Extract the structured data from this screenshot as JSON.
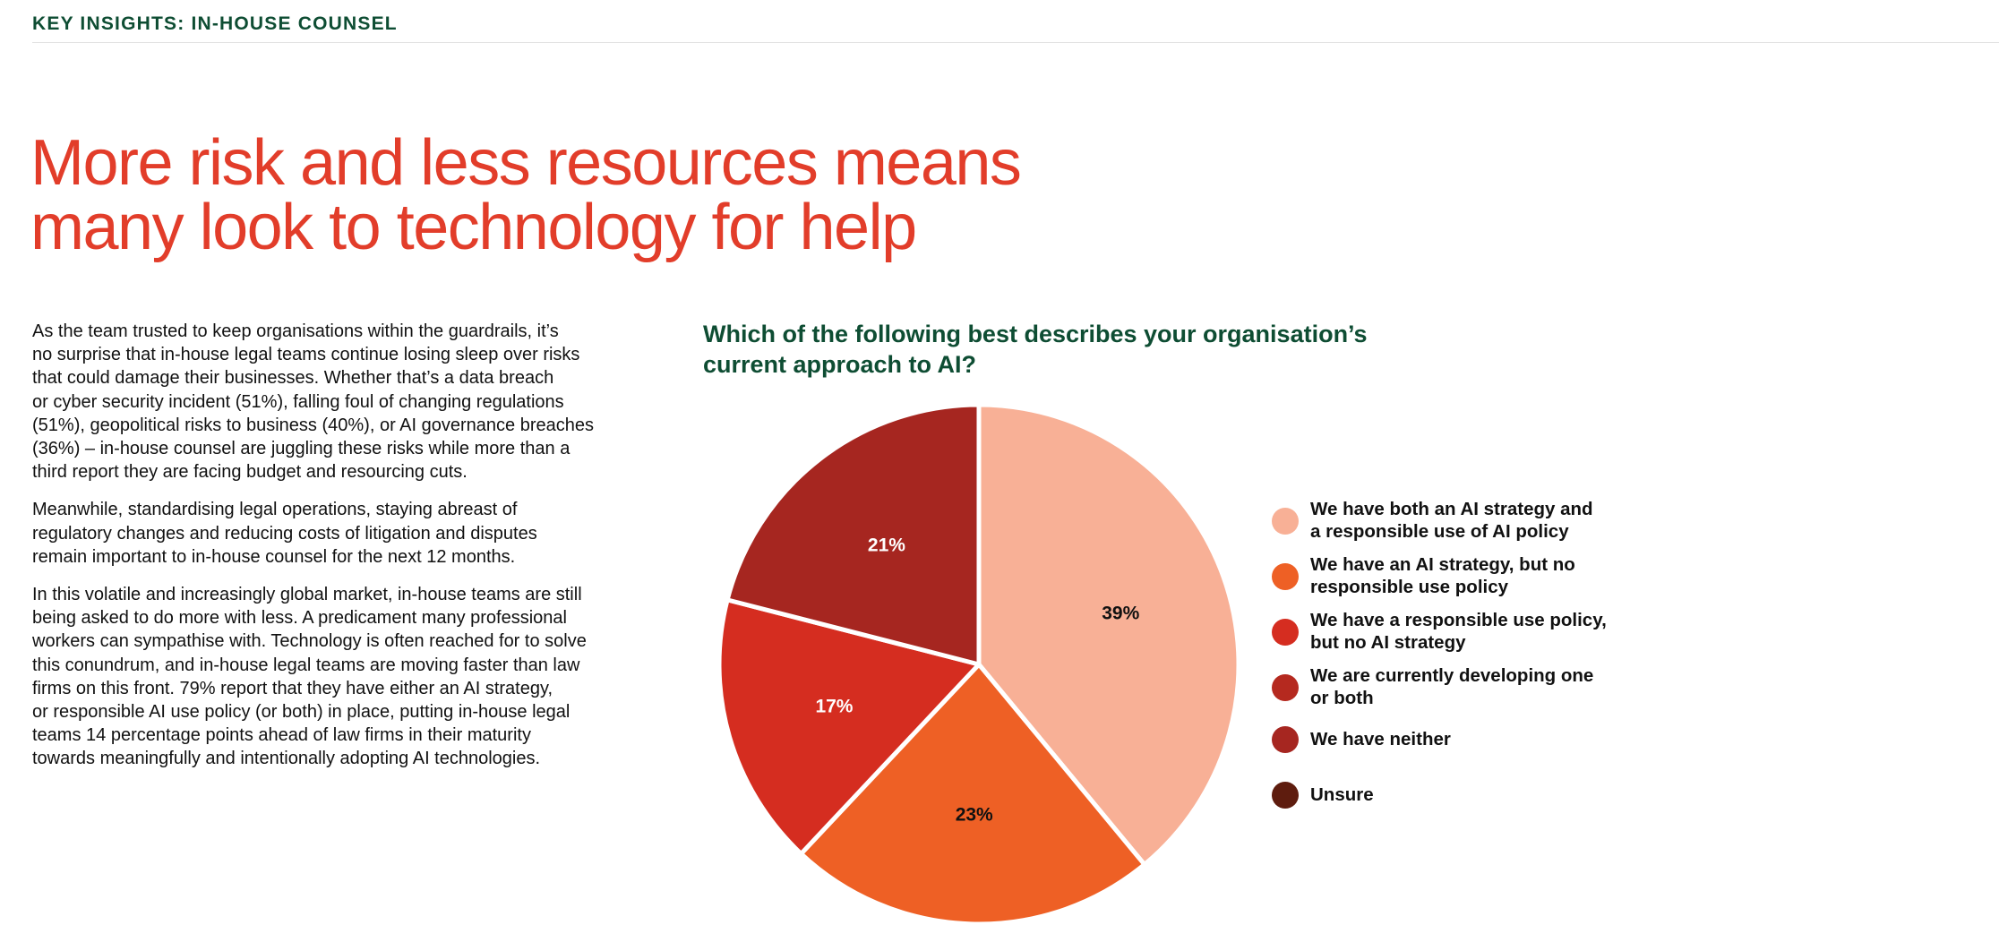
{
  "section_label": "KEY INSIGHTS: IN-HOUSE COUNSEL",
  "headline": [
    "More risk and less resources means",
    "many look to technology for help"
  ],
  "body": [
    [
      "As the team trusted to keep organisations within the guardrails, it’s",
      "no surprise that in-house legal teams continue losing sleep over risks",
      "that could damage their businesses. Whether that’s a data breach",
      "or cyber security incident (51%), falling foul of changing regulations",
      "(51%), geopolitical risks to business (40%), or AI governance breaches",
      "(36%) – in-house counsel are juggling these risks while more than a",
      "third report they are facing budget and resourcing cuts."
    ],
    [
      "Meanwhile, standardising legal operations, staying abreast of",
      "regulatory changes and reducing costs of litigation and disputes",
      "remain important to in-house counsel for the next 12 months."
    ],
    [
      "In this volatile and increasingly global market, in-house teams are still",
      "being asked to do more with less. A predicament many professional",
      "workers can sympathise with. Technology is often reached for to solve",
      "this conundrum, and in-house legal teams are moving faster than law",
      "firms on this front. 79% report that they have either an AI strategy,",
      "or responsible AI use policy (or both) in place, putting in-house legal",
      "teams 14 percentage points ahead of law firms in their maturity",
      "towards meaningfully and intentionally adopting AI technologies."
    ]
  ],
  "chart_data": {
    "type": "pie",
    "title": [
      "Which of the following best describes your organisation’s",
      "current approach to AI?"
    ],
    "legend_position": "right",
    "slices": [
      {
        "label": [
          "We have both an AI strategy and",
          "a responsible use of AI policy"
        ],
        "value": 39,
        "display": "39%",
        "color": "#f8b096",
        "label_color": "#111111"
      },
      {
        "label": [
          "We have an AI strategy, but no",
          "responsible use policy"
        ],
        "value": 23,
        "display": "23%",
        "color": "#ee6025",
        "label_color": "#111111"
      },
      {
        "label": [
          "We have a responsible use policy,",
          "but no AI strategy"
        ],
        "value": 17,
        "display": "17%",
        "color": "#d52d20",
        "label_color": "#ffffff"
      },
      {
        "label": [
          "We are currently developing one",
          "or both"
        ],
        "value": 0,
        "display": "",
        "color": "#b5291f",
        "label_color": "#ffffff"
      },
      {
        "label": [
          "We have neither"
        ],
        "value": 21,
        "display": "21%",
        "color": "#a62620",
        "label_color": "#ffffff"
      },
      {
        "label": [
          "Unsure"
        ],
        "value": 0,
        "display": "",
        "color": "#5e1c0e",
        "label_color": "#ffffff"
      }
    ]
  }
}
